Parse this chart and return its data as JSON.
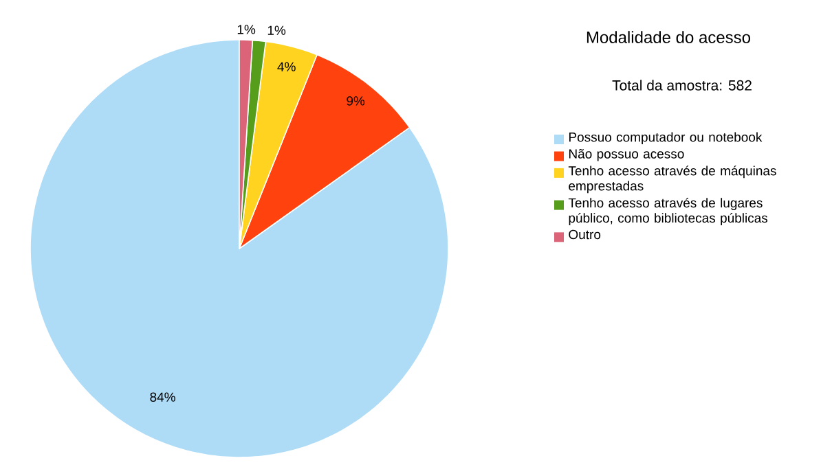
{
  "chart_data": {
    "type": "pie",
    "title": "Modalidade do acesso",
    "subtitle": "Total da amostra: 582",
    "categories": [
      "Possuo computador ou notebook",
      "Não possuo acesso",
      "Tenho acesso através de máquinas emprestadas",
      "Tenho acesso através de lugares público, como bibliotecas públicas",
      "Outro"
    ],
    "values": [
      84,
      9,
      4,
      1,
      1
    ],
    "colors": [
      "#aedcf7",
      "#ff420e",
      "#ffd320",
      "#579d1c",
      "#dc6478"
    ],
    "value_labels": [
      "84%",
      "9%",
      "4%",
      "1%",
      "1%"
    ],
    "legend": "right"
  }
}
